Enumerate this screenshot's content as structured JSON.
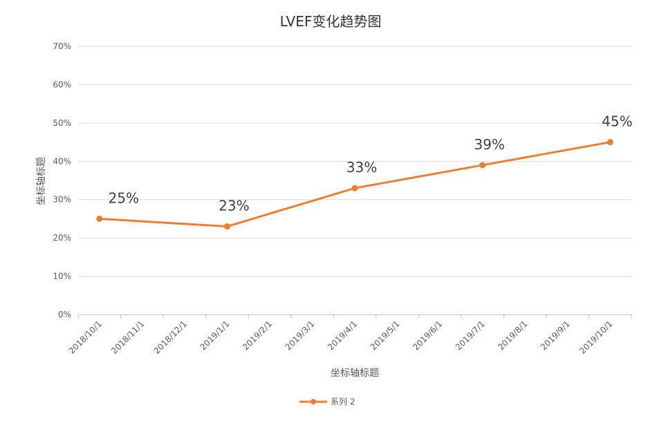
{
  "chart_data": {
    "type": "line",
    "title": "LVEF变化趋势图",
    "xlabel": "坐标轴标题",
    "ylabel": "坐标轴标题",
    "categories": [
      "2018/10/1",
      "2018/11/1",
      "2018/12/1",
      "2019/1/1",
      "2019/2/1",
      "2019/3/1",
      "2019/4/1",
      "2019/5/1",
      "2019/6/1",
      "2019/7/1",
      "2019/8/1",
      "2019/9/1",
      "2019/10/1"
    ],
    "y_ticks": [
      "0%",
      "10%",
      "20%",
      "30%",
      "40%",
      "50%",
      "60%",
      "70%"
    ],
    "ylim": [
      0,
      70
    ],
    "grid": true,
    "legend_position": "bottom",
    "series": [
      {
        "name": "系列 2",
        "color": "#ED7D31",
        "points": [
          {
            "x": "2018/10/1",
            "y": 25,
            "label": "25%"
          },
          {
            "x": "2019/1/1",
            "y": 23,
            "label": "23%"
          },
          {
            "x": "2019/4/1",
            "y": 33,
            "label": "33%"
          },
          {
            "x": "2019/7/1",
            "y": 39,
            "label": "39%"
          },
          {
            "x": "2019/10/1",
            "y": 45,
            "label": "45%"
          }
        ]
      }
    ]
  }
}
